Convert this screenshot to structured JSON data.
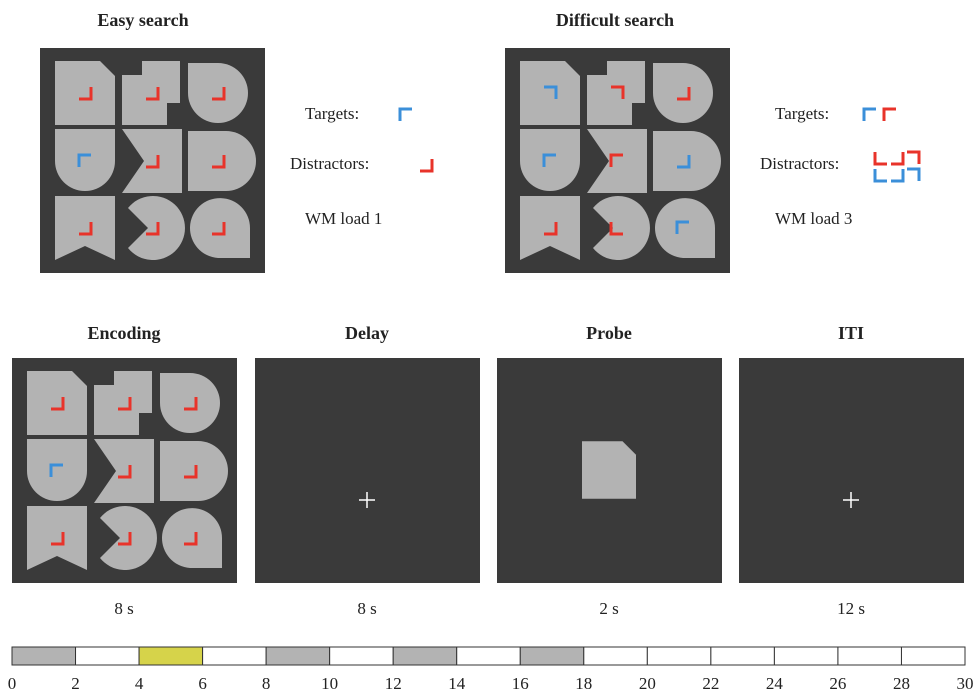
{
  "panels": [
    {
      "title": "Easy search",
      "targets_label": "Targets:",
      "distractors_label": "Distractors:",
      "load_label": "WM load 1"
    },
    {
      "title": "Difficult search",
      "targets_label": "Targets:",
      "distractors_label": "Distractors:",
      "load_label": "WM load 3"
    }
  ],
  "phases": [
    {
      "title": "Encoding",
      "duration": "8 s"
    },
    {
      "title": "Delay",
      "duration": "8 s"
    },
    {
      "title": "Probe",
      "duration": "2 s"
    },
    {
      "title": "ITI",
      "duration": "12 s"
    }
  ],
  "timeline": {
    "ticks": [
      0,
      2,
      4,
      6,
      8,
      10,
      12,
      14,
      16,
      18,
      20,
      22,
      24,
      26,
      28,
      30
    ]
  }
}
